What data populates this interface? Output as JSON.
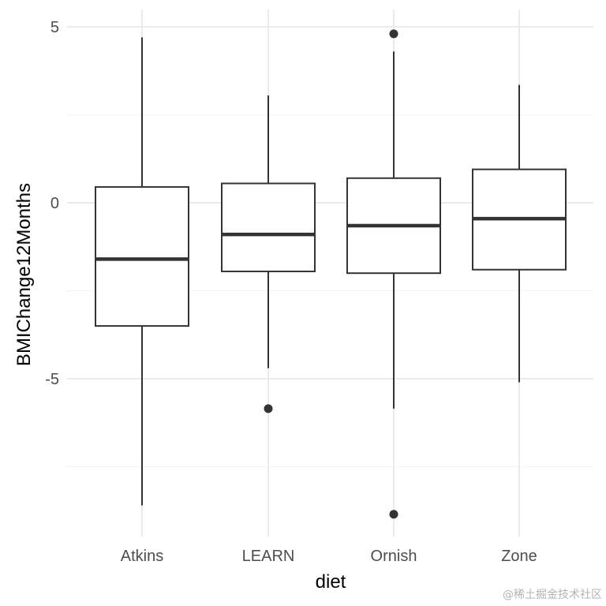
{
  "chart_data": {
    "type": "box",
    "xlabel": "diet",
    "ylabel": "BMIChange12Months",
    "categories": [
      "Atkins",
      "LEARN",
      "Ornish",
      "Zone"
    ],
    "ylim": [
      -9.5,
      5.5
    ],
    "yticks": [
      -5,
      0,
      5
    ],
    "ytick_labels": [
      "-5",
      "0",
      "5"
    ],
    "grid": true,
    "boxes": [
      {
        "category": "Atkins",
        "whisker_low": -8.6,
        "q1": -3.5,
        "median": -1.6,
        "q3": 0.45,
        "whisker_high": 4.7,
        "outliers": []
      },
      {
        "category": "LEARN",
        "whisker_low": -4.7,
        "q1": -1.95,
        "median": -0.9,
        "q3": 0.55,
        "whisker_high": 3.05,
        "outliers": [
          -5.85
        ]
      },
      {
        "category": "Ornish",
        "whisker_low": -5.85,
        "q1": -2.0,
        "median": -0.65,
        "q3": 0.7,
        "whisker_high": 4.3,
        "outliers": [
          4.8,
          -8.85
        ]
      },
      {
        "category": "Zone",
        "whisker_low": -5.1,
        "q1": -1.9,
        "median": -0.45,
        "q3": 0.95,
        "whisker_high": 3.35,
        "outliers": []
      }
    ],
    "colors": {
      "box_stroke": "#333333",
      "box_fill": "#ffffff",
      "grid_major": "#ebebeb",
      "grid_minor": "#f3f3f3",
      "outlier": "#333333"
    }
  },
  "watermark": "@稀土掘金技术社区"
}
